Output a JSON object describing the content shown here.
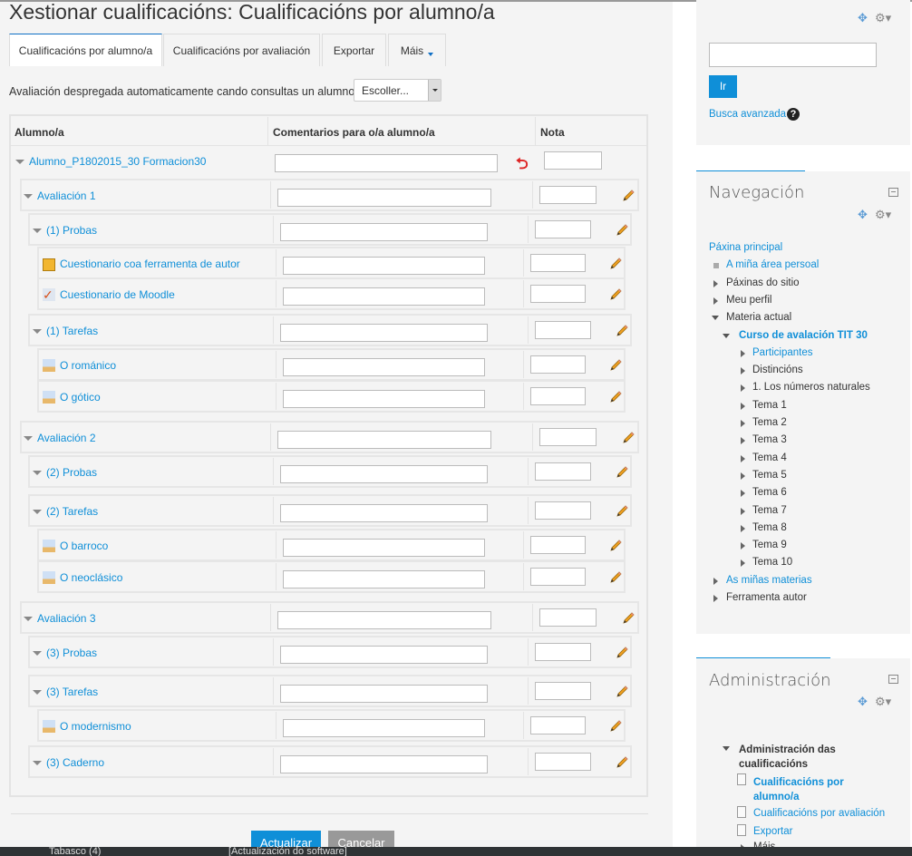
{
  "page_title": "Xestionar cualificacións: Cualificacións por alumno/a",
  "tabs": [
    {
      "label": "Cualificacións por alumno/a",
      "active": true
    },
    {
      "label": "Cualificacións por avaliación"
    },
    {
      "label": "Exportar"
    },
    {
      "label": "Máis"
    }
  ],
  "auto_expand": {
    "label": "Avaliación despregada automaticamente cando consultas un alumno",
    "selected": "Escoller..."
  },
  "table": {
    "headers": [
      "Alumno/a",
      "Comentarios para o/a alumno/a",
      "Nota"
    ],
    "student": "Alumno_P1802015_30 Formacion30",
    "rows": [
      {
        "label": "Avaliación 1",
        "level": 1,
        "icon": "expand-triangle"
      },
      {
        "label": "(1) Probas",
        "level": 2,
        "icon": "expand-triangle"
      },
      {
        "label": "Cuestionario coa ferramenta de autor",
        "level": 3,
        "icon": "authoring-tool-icon"
      },
      {
        "label": "Cuestionario de Moodle",
        "level": 3,
        "icon": "quiz-icon"
      },
      {
        "label": "(1) Tarefas",
        "level": 2,
        "icon": "expand-triangle"
      },
      {
        "label": "O románico",
        "level": 3,
        "icon": "assignment-icon"
      },
      {
        "label": "O gótico",
        "level": 3,
        "icon": "assignment-icon"
      },
      {
        "label": "Avaliación 2",
        "level": 1,
        "icon": "expand-triangle"
      },
      {
        "label": "(2) Probas",
        "level": 2,
        "icon": "expand-triangle"
      },
      {
        "label": "(2) Tarefas",
        "level": 2,
        "icon": "expand-triangle"
      },
      {
        "label": "O barroco",
        "level": 3,
        "icon": "assignment-icon"
      },
      {
        "label": "O neoclásico",
        "level": 3,
        "icon": "assignment-icon"
      },
      {
        "label": "Avaliación 3",
        "level": 1,
        "icon": "expand-triangle"
      },
      {
        "label": "(3) Probas",
        "level": 2,
        "icon": "expand-triangle"
      },
      {
        "label": "(3) Tarefas",
        "level": 2,
        "icon": "expand-triangle"
      },
      {
        "label": "O modernismo",
        "level": 3,
        "icon": "assignment-icon"
      },
      {
        "label": "(3) Caderno",
        "level": 2,
        "icon": "expand-triangle"
      }
    ]
  },
  "buttons": {
    "update": "Actualizar",
    "cancel": "Cancelar"
  },
  "search_block": {
    "go": "Ir",
    "advanced": "Busca avanzada"
  },
  "navigation": {
    "title": "Navegación",
    "items": [
      {
        "label": "Páxina principal",
        "level": 0,
        "link": true,
        "marker": "none"
      },
      {
        "label": "A miña área persoal",
        "level": 1,
        "link": true,
        "marker": "square"
      },
      {
        "label": "Páxinas do sitio",
        "level": 1,
        "marker": "right"
      },
      {
        "label": "Meu perfil",
        "level": 1,
        "marker": "right"
      },
      {
        "label": "Materia actual",
        "level": 1,
        "marker": "down"
      },
      {
        "label": "Curso de avalación TIT 30",
        "level": 2,
        "link": true,
        "bold": true,
        "marker": "down"
      },
      {
        "label": "Participantes",
        "level": 3,
        "link": true,
        "marker": "right"
      },
      {
        "label": "Distincións",
        "level": 3,
        "marker": "right"
      },
      {
        "label": "1. Los números naturales",
        "level": 3,
        "marker": "right"
      },
      {
        "label": "Tema 1",
        "level": 3,
        "marker": "right"
      },
      {
        "label": "Tema 2",
        "level": 3,
        "marker": "right"
      },
      {
        "label": "Tema 3",
        "level": 3,
        "marker": "right"
      },
      {
        "label": "Tema 4",
        "level": 3,
        "marker": "right"
      },
      {
        "label": "Tema 5",
        "level": 3,
        "marker": "right"
      },
      {
        "label": "Tema 6",
        "level": 3,
        "marker": "right"
      },
      {
        "label": "Tema 7",
        "level": 3,
        "marker": "right"
      },
      {
        "label": "Tema 8",
        "level": 3,
        "marker": "right"
      },
      {
        "label": "Tema 9",
        "level": 3,
        "marker": "right"
      },
      {
        "label": "Tema 10",
        "level": 3,
        "marker": "right"
      },
      {
        "label": "As miñas materias",
        "level": 1,
        "link": true,
        "marker": "right"
      },
      {
        "label": "Ferramenta autor",
        "level": 1,
        "marker": "right"
      }
    ]
  },
  "administration": {
    "title": "Administración",
    "section": "Administración das cualificacións",
    "items": [
      {
        "label": "Cualificacións por alumno/a",
        "active": true
      },
      {
        "label": "Cualificacións por avaliación"
      },
      {
        "label": "Exportar"
      },
      {
        "label": "Máis"
      }
    ]
  },
  "taskbar": [
    "Tabasco (4)",
    "[Actualización do software]"
  ],
  "colors": {
    "link": "#0f8fd8",
    "primary_button": "#0f8fd8",
    "secondary_button": "#999999",
    "background": "#f4f4f4"
  }
}
